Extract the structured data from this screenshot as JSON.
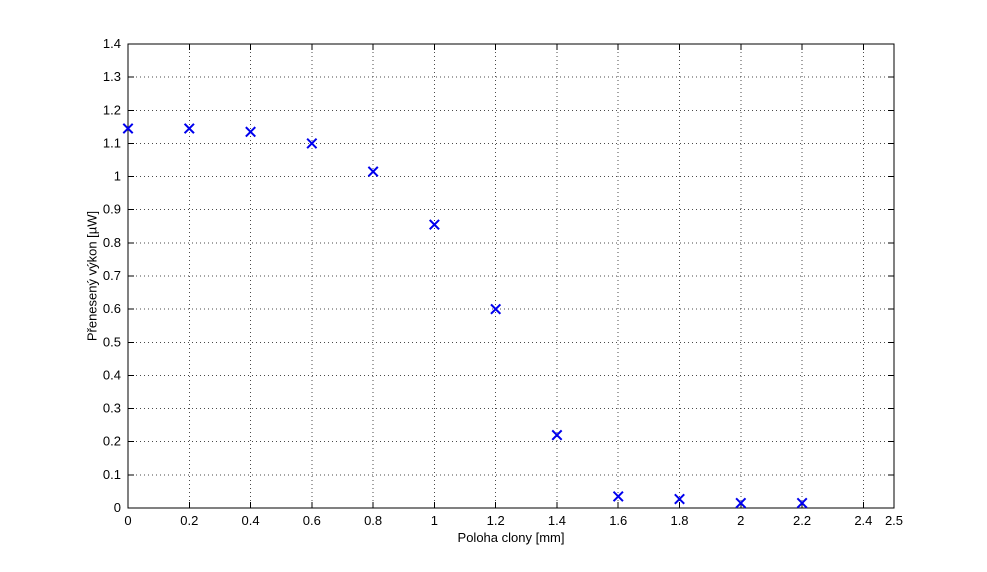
{
  "chart_data": {
    "type": "scatter",
    "title": "",
    "xlabel": "Poloha clony [mm]",
    "ylabel": "Přenesený výkon [µW]",
    "xlim": [
      0,
      2.5
    ],
    "ylim": [
      0,
      1.4
    ],
    "xticks": [
      0,
      0.2,
      0.4,
      0.6,
      0.8,
      1,
      1.2,
      1.4,
      1.6,
      1.8,
      2,
      2.2,
      2.4,
      2.5
    ],
    "xtick_labels": [
      "0",
      "0.2",
      "0.4",
      "0.6",
      "0.8",
      "1",
      "1.2",
      "1.4",
      "1.6",
      "1.8",
      "2",
      "2.2",
      "2.4",
      "2.5"
    ],
    "yticks": [
      0,
      0.1,
      0.2,
      0.3,
      0.4,
      0.5,
      0.6,
      0.7,
      0.8,
      0.9,
      1,
      1.1,
      1.2,
      1.3,
      1.4
    ],
    "ytick_labels": [
      "0",
      "0.1",
      "0.2",
      "0.3",
      "0.4",
      "0.5",
      "0.6",
      "0.7",
      "0.8",
      "0.9",
      "1",
      "1.1",
      "1.2",
      "1.3",
      "1.4"
    ],
    "grid": true,
    "legend": null,
    "series": [
      {
        "name": "Přenesený výkon",
        "marker": "x",
        "color": "#0000ee",
        "x": [
          0,
          0.2,
          0.4,
          0.6,
          0.8,
          1,
          1.2,
          1.4,
          1.6,
          1.8,
          2,
          2.2
        ],
        "y": [
          1.145,
          1.145,
          1.135,
          1.1,
          1.015,
          0.855,
          0.6,
          0.22,
          0.035,
          0.027,
          0.015,
          0.015
        ]
      }
    ],
    "colors": {
      "marker": "#0000ee",
      "grid": "#4a4a4a",
      "axis": "#000000",
      "background": "#ffffff"
    }
  }
}
